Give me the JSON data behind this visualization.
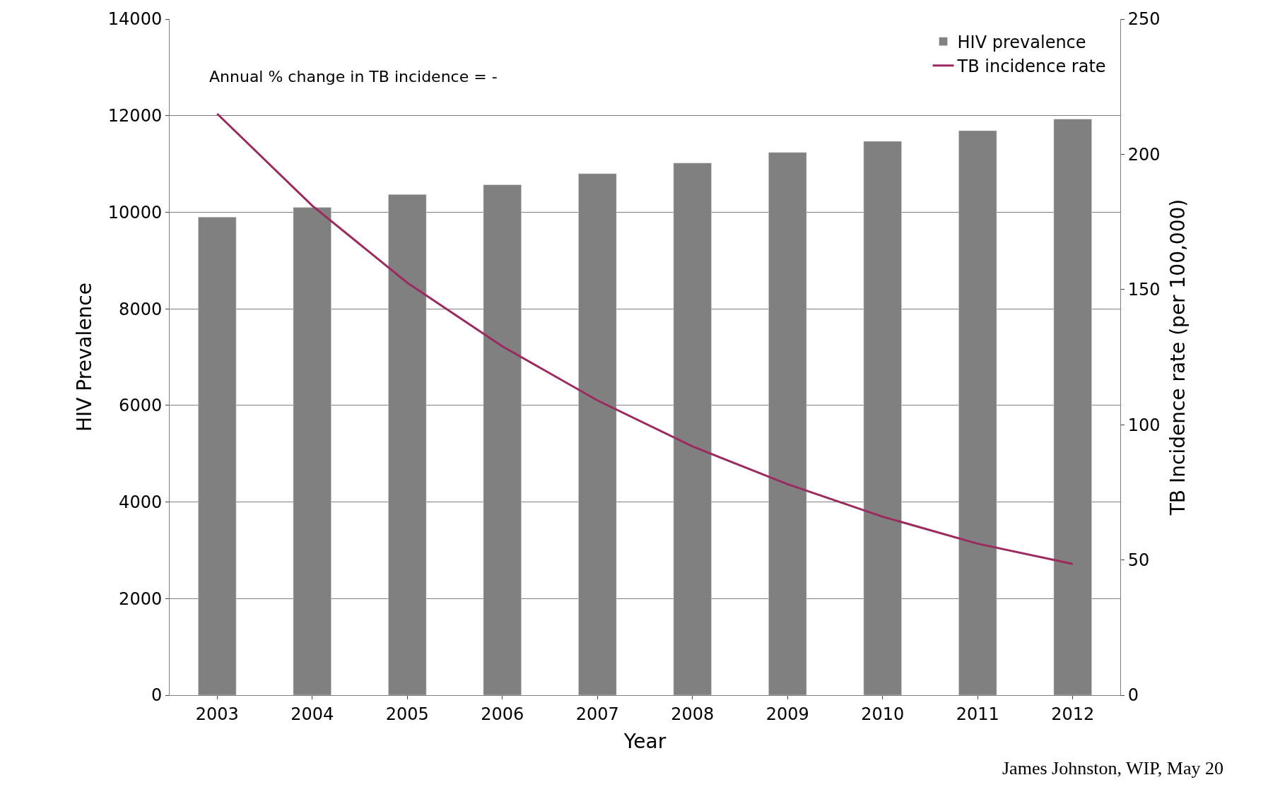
{
  "chart_data": {
    "type": "bar",
    "xlabel": "Year",
    "ylabel": "HIV Prevalence",
    "y2label": "TB Incidence rate (per 100,000)",
    "categories": [
      "2003",
      "2004",
      "2005",
      "2006",
      "2007",
      "2008",
      "2009",
      "2010",
      "2011",
      "2012"
    ],
    "series": [
      {
        "name": "HIV prevalence",
        "color": "#808080",
        "values": [
          9900,
          10100,
          10370,
          10570,
          10800,
          11020,
          11240,
          11470,
          11690,
          11930
        ]
      },
      {
        "name": "TB incidence rate",
        "type": "line",
        "axis": "y2",
        "color": "#9b2a5f",
        "values": [
          215,
          181,
          152.5,
          129,
          109,
          92,
          78,
          66,
          56,
          48.5
        ]
      }
    ],
    "ylim": [
      0,
      14000
    ],
    "yticks": [
      0,
      2000,
      4000,
      6000,
      8000,
      10000,
      12000,
      14000
    ],
    "y2lim": [
      0,
      250
    ],
    "y2ticks": [
      0,
      50,
      100,
      150,
      200,
      250
    ],
    "grid": "y",
    "legend": "top right",
    "marker": "none",
    "line_style": "solid",
    "annotations": [
      "Annual % change in TB incidence = -",
      "James Johnston, WIP, May 20"
    ]
  }
}
